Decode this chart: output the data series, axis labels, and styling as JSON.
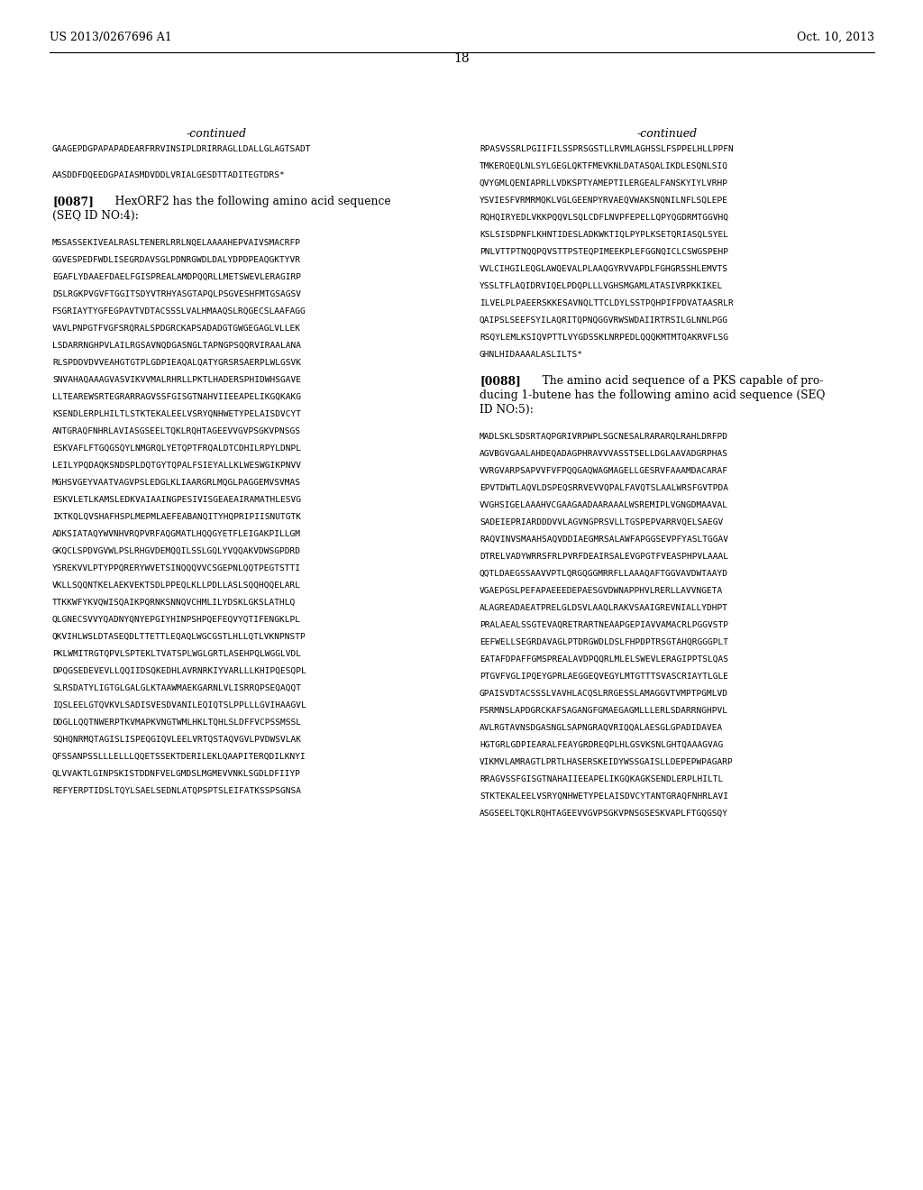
{
  "background_color": "#ffffff",
  "page_number": "18",
  "header_left": "US 2013/0267696 A1",
  "header_right": "Oct. 10, 2013",
  "continued_label": "-continued",
  "left_continued_seq": [
    "GAAGEPDGPAPAPADEARFRRVINSIPLDRIRRAGLLDALLGLAGTSADT",
    "",
    "AASDDFDQEEDGPAIASMDVDDLVRIALGESDTTADITEGTDRS*"
  ],
  "para_0087_label": "[0087]",
  "para_0087_text_line1": "   HexORF2 has the following amino acid sequence",
  "para_0087_text_line2": "(SEQ ID NO:4):",
  "seq4_lines": [
    "MSSASSEKIVEALRASLTENERLRRLNQELAAAAHEPVAIVSMACRFP",
    "GGVESPEDFWDLISEGRDAVSGLPDNRGWDLDALYDPDPEAQGKTYVR",
    "EGAFLYDAAEFDAELFGISPREALAMDPQQRLLMETSWEVLERAGIRP",
    "DSLRGKPVGVFTGGITSDYVTRHYASGTAPQLPSGVESHFMTGSAGSV",
    "FSGRIAYTYGFEGPAVTVDTACSSSLVALHMAAQSLRQGECSLAAFAGG",
    "VAVLPNPGTFVGFSRQRALSPDGRCKAPSADADGTGWGEGAGLVLLEK",
    "LSDARRNGHPVLAILRGSAVNQDGASNGLTAPNGPSQQRVIRAALANA",
    "RLSPDDVDVVEAHGTGTPLGDPIEAQALQATYGRSRSAERPLWLGSVK",
    "SNVAHAQAAAGVASVIKVVMALRHRLLPKTLHADERSPHIDWHSGAVE",
    "LLTEAREWSRTEGRARRAGVSSFGISGTNAHVIIEEAPELIKGQKAKG",
    "KSENDLERPLHILTLSTKTEKALEELVSRYQNHWETYPELAISDVCYT",
    "ANTGRAQFNHRLAVIASGSEELTQKLRQHTAGEEVVGVPSGKVPNSGS",
    "ESKVAFLFTGQGSQYLNMGRQLYETQPTFRQALDTCDHILRPYLDNPL",
    "LEILYPQDAQKSNDSPLDQTGYTQPALFSIEYALLKLWESWGIKPNVV",
    "MGHSVGEYVAATVAGVPSLEDGLKLIAARGRLMQGLPAGGEMVSVMAS",
    "ESKVLETLKAMSLEDKVAIAAINGPESIVISGEAEAIRAMATHLESVG",
    "IKTKQLQVSHAFHSPLMEPMLAEFEABANQITYHQPRIPIISNUTGTK",
    "ADKSIATAQYWVNHVRQPVRFAQGMATLHQQGYETFLEIGAKPILLGM",
    "GKQCLSPDVGVWLPSLRHGVDEMQQILSSLGQLYVQQAKVDWSGPDRD",
    "YSREKVVLPTYPPQRERYWVETSINQQQVVCSGEPNLQQTPEGTSTTI",
    "VKLLSQQNTKELAEKVEKTSDLPPEQLKLLPDLLASLSQQHQQELARL",
    "TTKKWFYKVQWISQAIKPQRNKSNNQVCHMLILYDSKLGKSLATHLQ",
    "QLGNECSVVYQADNYQNYEPGIYHINPSHPQEFEQVYQTIFENGKLPL",
    "QKVIHLWSLDTASEQDLTTETTLEQAQLWGCGSTLHLLQTLVKNPNSTP",
    "PKLWMITRGTQPVLSPTEKLTVATSPLWGLGRTLASEHPQLWGGLVDL",
    "DPQGSEDEVEVLLQQIIDSQKEDHLAVRNRKIYVARLLLKHIPQESQPL",
    "SLRSDATYLIGTGLGALGLKTAAWMAEKGARNLVLISRRQPSEQAQQT",
    "IQSLEELGTQVKVLSADISVESDVANILEQIQTSLPPLLLGVIHAAGVL",
    "DDGLLQQTNWERPTKVMAPKVNGTWMLHKLTQHLSLDFFVCPSSMSSL",
    "SQHQNRMQTAGISLISPEQGIQVLEELVRTQSTAQVGVLPVDWSVLAK",
    "QFSSANPSSLLLELLLQQETSSEKTDERILEKLQAAPITERQDILKNYI",
    "QLVVAKTLGINPSKISTDDNFVELGMDSLMGMEVVNKLSGDLDFIIYP",
    "REFYERPTIDSLTQYLSAELSEDNLATQPSPTSLEIFATKSSPSGNSA"
  ],
  "right_continued_seq": [
    "RPASVSSRLPGIIFILSSPRSGSTLLRVMLAGHSSLFSPPELHLLPPFN",
    "TMKERQEQLNLSYLGEGLQKTFMEVKNLDATASQALIKDLESQNLSIQ",
    "QVYGMLQENIAPRLLVDKSPTYAMEPTILERGEALFANSKYIYLVRHP",
    "YSVIESFVRMRMQKLVGLGEENPYRVAEQVWAKSNQNILNFLSQLEPE",
    "RQHQIRYEDLVKKPQQVLSQLCDFLNVPFEPELLQPYQGDRMTGGVHQ",
    "KSLSISDPNFLKHNTIDESLAD KWKTIQLPYPLKSETQRIASQLSYEL",
    "PNLVTTPTNQQPQVSTTPSTEQPIMEEKPLEFGGNQICLCSWGSPEHP",
    "VVLCIHGILEQGLAWQEVALPLAAQGYRVVAPDLFGHGRSSHLEMVTS",
    "YSSLTFLAQIDRVIQELPDQPLLLVGHSMGAMLATASIVRPKKIKEL",
    "ILVELPLPAEERSK KESAVNQLTTCLDYLSSTPQHPIFPDVATAASRLR",
    "QAIPSLSEEFSYILAQRITQPNQGGVRWSWDAIIRTRSILGLNNLPGG",
    "RSQYLEMLKSIQVPTTLVYGDSSKLNRPEDLQQQKMTMTQAKRVFLSG",
    "GHNLHIDAAAALASLILTS*"
  ],
  "para_0088_label": "[0088]",
  "para_0088_text_line1": "   The amino acid sequence of a PKS capable of pro-",
  "para_0088_text_line2": "ducing 1-butene has the following amino acid sequence (SEQ",
  "para_0088_text_line3": "ID NO:5):",
  "seq5_lines": [
    "MADLSKLSDSRTAQPGRIVRPWPLSGCNESALRARARQLRAHLDRFPD",
    "AGVBGVGAALAHDEQADAGPHRAVVVASSTSELLDGLAAVADGRPHAS",
    "VVRGVARPSAPVVFVFPQQGAQWAGMAGELLGESRVFAAAMDACARAF",
    "EPVTDWTLAQVLDSPEQSRRVEVVQPALFAVQTSLAALWRSFGVTPDA",
    "VVGHSIGELAAAHVCGAAGAADAARAAALWSREMIPLVGNGDMAAVAL",
    "SADEIEPRIARDDD VVLAGVNGPRSVLLTGSPEPVARRVQELSAEGV",
    "RAQVINVSMAAHSAQVDDIAEGMRSALAWFAPGGSEVPFYASLTGGAV",
    "DTRELVADYWRRSFRLPVRFDEAIRSALEVGPGTFVEASPHPVLAAAL",
    "QQTLDAEGSSAAVVPTLQRGQGGMRRFLLAAAQAFTGGVAVDWTAAYD",
    "VGAEPGSLPEFAPAEEEDE PAESGVDWNAPPHVLRERLLAVVNGETA",
    "ALAGREADAEATPRELGLDSVLAAQLRAKVSAAIGREVNIALLYDHPT",
    "PRALAEALSSGTEVAQRETRARTNEAAPGEPIAVVAMACRLPGGVSTP",
    "EEFWELLSEGRDAVAGLPTDRGWDLDSLFHPDPTRSG TAHQRGGGPLT",
    "EATAFDPAFFGMSPREALAVDPQQRLMLELSWEVLERAGIPPTSLQAS",
    "PTGVFVGLIPQEYGPRLAEGGEQVEGYLMTGTTTSVASCRIAY TLGLE",
    "GPAISVDTACSSSLVAVHLACQSLRRGESSLAMAGGVTVMPTPGMLVD",
    "FSRMNSLAPDGRCKAFSAGANGFGMAEGAGMLLLERLSDARRNGHPVL",
    "AVLRGTAVNSDGASNGLSAPNGRAQVRIQQALAESGLGPADIDAVEA",
    "HGTGRLGDPIEARALFEA YGRDREQPLHLGSVKSNLGHTQAAAGVAG",
    "VIKMVLAMRAGTLPRTLHASERSKEIDY WSSGAISLLDEPE PWPAGARP",
    "RRAGVSSFGISGTNAHAIIEEAPELIKGQKAGKSENDLERPLHILTL",
    "STKTEKALEELVSRYQNHWETYPELAISDVCYTANTGRAQFNHRLAVI",
    "ASGSEELTQKLRQHTAGEEVVGVPSGKVPNSGSESKVAPLFTGQGSQY"
  ]
}
